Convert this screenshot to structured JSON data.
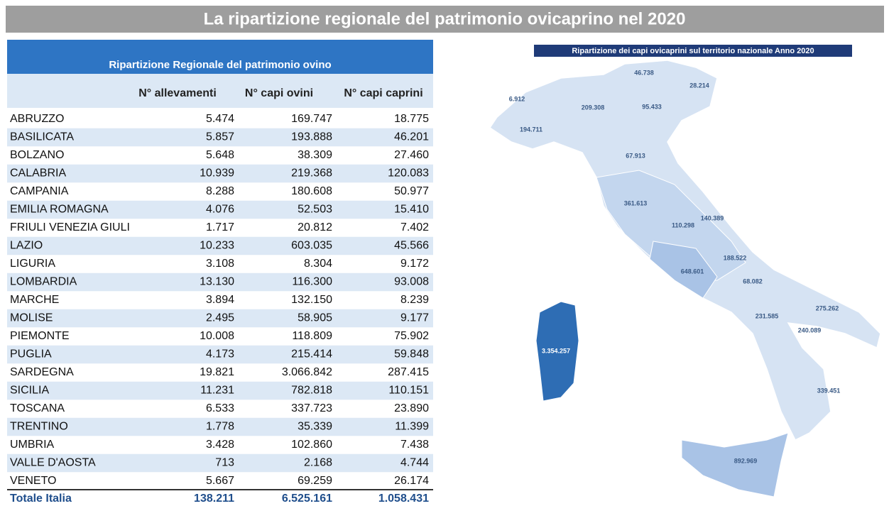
{
  "title": "La ripartizione regionale del patrimonio ovicaprino nel 2020",
  "table": {
    "title": "Ripartizione Regionale del patrimonio ovino",
    "headers": [
      "N° allevamenti",
      "N° capi ovini",
      "N° capi caprini"
    ],
    "rows": [
      [
        "ABRUZZO",
        "5.474",
        "169.747",
        "18.775"
      ],
      [
        "BASILICATA",
        "5.857",
        "193.888",
        "46.201"
      ],
      [
        "BOLZANO",
        "5.648",
        "38.309",
        "27.460"
      ],
      [
        "CALABRIA",
        "10.939",
        "219.368",
        "120.083"
      ],
      [
        "CAMPANIA",
        "8.288",
        "180.608",
        "50.977"
      ],
      [
        "EMILIA ROMAGNA",
        "4.076",
        "52.503",
        "15.410"
      ],
      [
        "FRIULI VENEZIA GIULI",
        "1.717",
        "20.812",
        "7.402"
      ],
      [
        "LAZIO",
        "10.233",
        "603.035",
        "45.566"
      ],
      [
        "LIGURIA",
        "3.108",
        "8.304",
        "9.172"
      ],
      [
        "LOMBARDIA",
        "13.130",
        "116.300",
        "93.008"
      ],
      [
        "MARCHE",
        "3.894",
        "132.150",
        "8.239"
      ],
      [
        "MOLISE",
        "2.495",
        "58.905",
        "9.177"
      ],
      [
        "PIEMONTE",
        "10.008",
        "118.809",
        "75.902"
      ],
      [
        "PUGLIA",
        "4.173",
        "215.414",
        "59.848"
      ],
      [
        "SARDEGNA",
        "19.821",
        "3.066.842",
        "287.415"
      ],
      [
        "SICILIA",
        "11.231",
        "782.818",
        "110.151"
      ],
      [
        "TOSCANA",
        "6.533",
        "337.723",
        "23.890"
      ],
      [
        "TRENTINO",
        "1.778",
        "35.339",
        "11.399"
      ],
      [
        "UMBRIA",
        "3.428",
        "102.860",
        "7.438"
      ],
      [
        "VALLE D'AOSTA",
        "713",
        "2.168",
        "4.744"
      ],
      [
        "VENETO",
        "5.667",
        "69.259",
        "26.174"
      ]
    ],
    "total": [
      "Totale Italia",
      "138.211",
      "6.525.161",
      "1.058.431"
    ]
  },
  "map": {
    "title": "Ripartizione dei capi ovicaprini sul territorio nazionale Anno 2020",
    "labels": [
      "46.738",
      "28.214",
      "6.912",
      "209.308",
      "95.433",
      "194.711",
      "67.913",
      "361.613",
      "140.389",
      "110.298",
      "188.522",
      "648.601",
      "68.082",
      "275.262",
      "231.585",
      "240.089",
      "3.354.257",
      "339.451",
      "892.969"
    ]
  }
}
